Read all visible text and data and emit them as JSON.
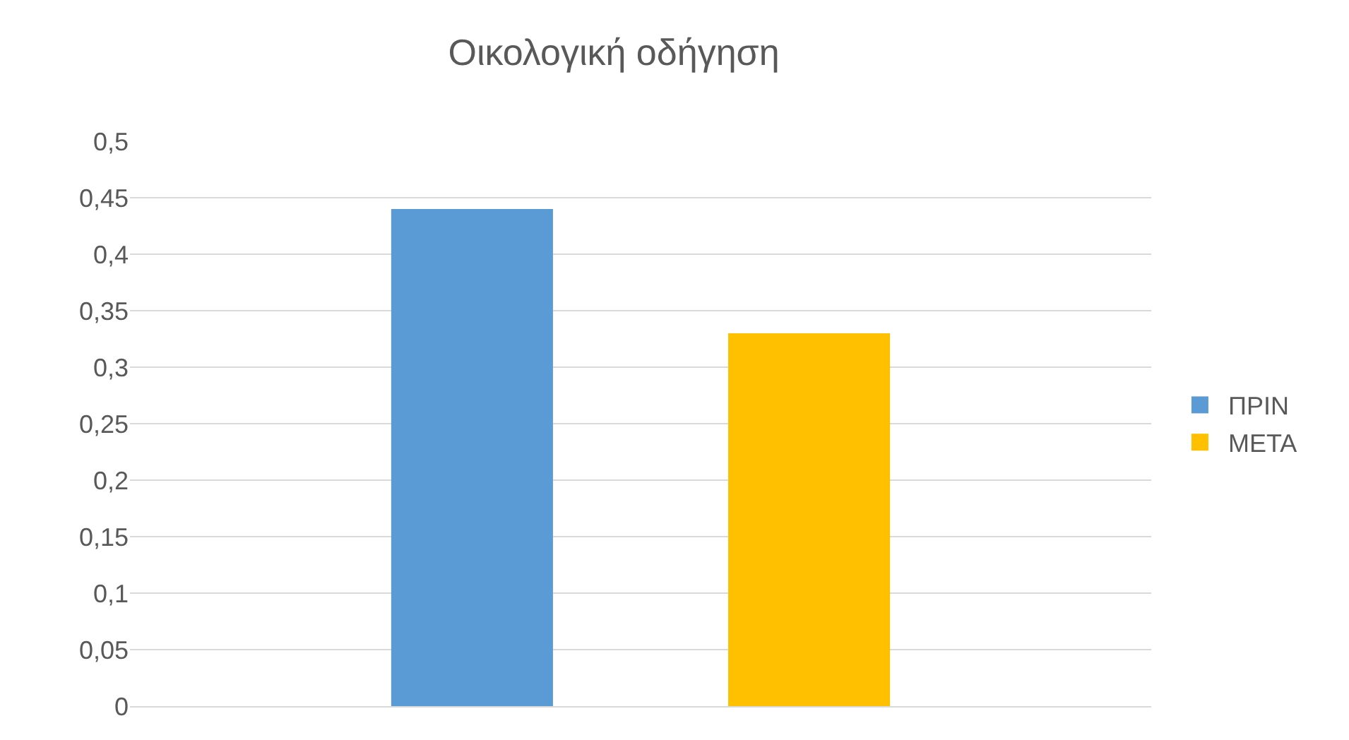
{
  "chart_data": {
    "type": "bar",
    "title": "Οικολογική οδήγηση",
    "categories": [
      null
    ],
    "series": [
      {
        "name": "ΠΡΙΝ",
        "color": "#5b9bd5",
        "values": [
          0.44
        ]
      },
      {
        "name": "ΜΕΤΑ",
        "color": "#ffc000",
        "values": [
          0.33
        ]
      }
    ],
    "ylim": [
      0,
      0.5
    ],
    "yticks": [
      0,
      {
        "value": 0.05,
        "label": "0,05"
      },
      {
        "value": 0.1,
        "label": "0,1"
      },
      {
        "value": 0.15,
        "label": "0,15"
      },
      {
        "value": 0.2,
        "label": "0,2"
      },
      {
        "value": 0.25,
        "label": "0,25"
      },
      {
        "value": 0.3,
        "label": "0,3"
      },
      {
        "value": 0.35,
        "label": "0,35"
      },
      {
        "value": 0.4,
        "label": "0,4"
      },
      {
        "value": 0.45,
        "label": "0,45"
      },
      {
        "value": 0.5,
        "label": "0,5"
      }
    ],
    "grid": "y",
    "legend": "right"
  }
}
